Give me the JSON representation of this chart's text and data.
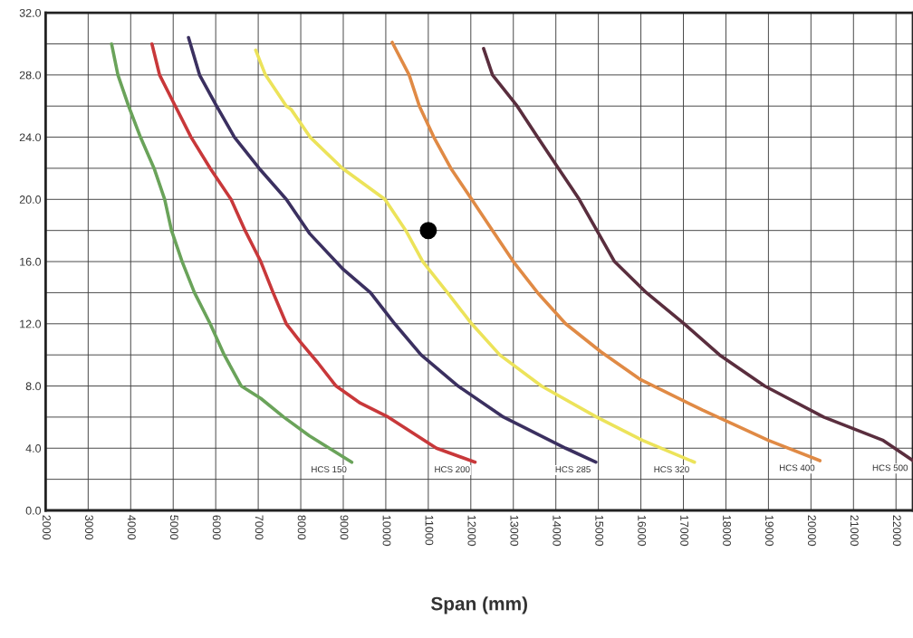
{
  "chart_data": {
    "type": "line",
    "xlabel": "Span (mm)",
    "xlim": [
      2000,
      22400
    ],
    "ylim": [
      0,
      32
    ],
    "xticks": [
      2000,
      3000,
      4000,
      5000,
      6000,
      7000,
      8000,
      9000,
      10000,
      11000,
      12000,
      13000,
      14000,
      15000,
      16000,
      17000,
      18000,
      19000,
      20000,
      21000,
      22000
    ],
    "yticks": [
      {
        "value": 0,
        "label": "0.0"
      },
      {
        "value": 2,
        "label": null
      },
      {
        "value": 4,
        "label": "4.0"
      },
      {
        "value": 6,
        "label": null
      },
      {
        "value": 8,
        "label": "8.0"
      },
      {
        "value": 10,
        "label": null
      },
      {
        "value": 12,
        "label": "12.0"
      },
      {
        "value": 14,
        "label": null
      },
      {
        "value": 16,
        "label": "16.0"
      },
      {
        "value": 18,
        "label": null
      },
      {
        "value": 20,
        "label": "20.0"
      },
      {
        "value": 22,
        "label": null
      },
      {
        "value": 24,
        "label": "24.0"
      },
      {
        "value": 26,
        "label": null
      },
      {
        "value": 28,
        "label": "28.0"
      },
      {
        "value": 30,
        "label": null
      },
      {
        "value": 32,
        "label": "32.0"
      }
    ],
    "grid": true,
    "marker": "none",
    "line_style": "solid",
    "legend": false,
    "series": [
      {
        "name": "HCS 150",
        "color": "#6aa35a",
        "x": [
          3550,
          3700,
          3950,
          4230,
          4550,
          4800,
          4960,
          5210,
          5500,
          5870,
          6200,
          6600,
          7060,
          7600,
          8200,
          9200
        ],
        "values": [
          30,
          28,
          26,
          24,
          22,
          20,
          18,
          16,
          14,
          12,
          10,
          8,
          7.2,
          6,
          4.8,
          3.1
        ]
      },
      {
        "name": "HCS 200",
        "color": "#c8383a",
        "x": [
          4500,
          4680,
          5050,
          5420,
          5870,
          6360,
          6690,
          7060,
          7350,
          7660,
          8000,
          8400,
          8830,
          9400,
          10060,
          11190,
          12100
        ],
        "values": [
          30,
          28,
          26,
          24,
          22,
          20,
          18,
          16,
          14,
          12,
          10.8,
          9.5,
          8,
          6.9,
          6,
          4,
          3.1
        ]
      },
      {
        "name": "HCS 285",
        "color": "#3b3060",
        "x": [
          5360,
          5620,
          6020,
          6440,
          7020,
          7660,
          8210,
          9000,
          9640,
          10210,
          10830,
          11700,
          12770,
          14230,
          14940
        ],
        "values": [
          30.4,
          28,
          26,
          24,
          22,
          20,
          17.8,
          15.5,
          14,
          12,
          10,
          8,
          6,
          4,
          3.1
        ]
      },
      {
        "name": "HCS 320",
        "color": "#ece35a",
        "x": [
          6940,
          7170,
          7660,
          7770,
          8220,
          8980,
          9980,
          10470,
          10870,
          11450,
          12020,
          12680,
          13660,
          14960,
          16040,
          17260
        ],
        "values": [
          29.6,
          28,
          26,
          25.8,
          24,
          22,
          20,
          18,
          16,
          14,
          12,
          10,
          8,
          6,
          4.5,
          3.1
        ]
      },
      {
        "name": "HCS 400",
        "color": "#e08a45",
        "x": [
          10150,
          10550,
          10790,
          11130,
          11530,
          12020,
          12510,
          13000,
          13570,
          14230,
          15060,
          16000,
          17450,
          19000,
          20210
        ],
        "values": [
          30.1,
          28,
          26,
          24,
          22,
          20,
          18,
          16,
          14,
          12,
          10.2,
          8.4,
          6.45,
          4.5,
          3.2
        ]
      },
      {
        "name": "HCS 500",
        "color": "#5a2e3e",
        "x": [
          12300,
          12510,
          13090,
          13570,
          14060,
          14550,
          15380,
          16130,
          17020,
          17850,
          18910,
          20300,
          21700,
          22400
        ],
        "values": [
          29.7,
          28,
          26,
          24,
          22,
          20,
          16,
          14,
          12,
          10,
          8,
          6,
          4.5,
          3.2
        ]
      },
      {
        "type": "scatter",
        "color": "#000000",
        "marker": "circle",
        "x": [
          11000
        ],
        "values": [
          18
        ]
      }
    ]
  }
}
